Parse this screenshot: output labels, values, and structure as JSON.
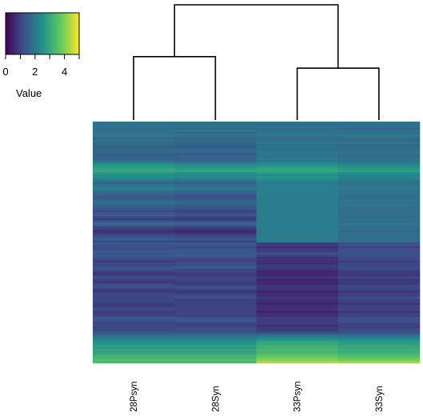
{
  "chart_data": {
    "type": "heatmap",
    "title": "",
    "columns": [
      "28Psyn",
      "28Syn",
      "33Psyn",
      "33Syn"
    ],
    "dendrogram": {
      "merges": [
        {
          "left": "28Psyn",
          "right": "28Syn",
          "height": 0.55
        },
        {
          "left": "33Psyn",
          "right": "33Syn",
          "height": 0.45
        },
        {
          "left": "28Psyn|28Syn",
          "right": "33Psyn|33Syn",
          "height": 1.0
        }
      ]
    },
    "row_count": 120,
    "value_range": [
      0,
      5
    ],
    "colorbar": {
      "title": "Value",
      "ticks": [
        0,
        2,
        4
      ],
      "minor_ticks": [
        0,
        1,
        2,
        3,
        4,
        5
      ],
      "colormap": "viridis",
      "colors": [
        "#440154",
        "#3b528b",
        "#21918c",
        "#5ec962",
        "#fde725"
      ]
    },
    "row_profile_means": [
      1.9,
      1.85,
      1.9,
      1.7,
      1.8,
      1.75,
      1.9,
      1.8,
      1.6,
      1.7,
      1.75,
      1.65,
      1.55,
      1.6,
      1.7,
      1.6,
      1.5,
      1.55,
      1.6,
      1.65,
      2.0,
      2.3,
      2.4,
      2.5,
      2.6,
      2.4,
      2.2,
      2.3,
      2.1,
      1.9,
      1.6,
      1.7,
      1.8,
      1.9,
      1.7,
      1.6,
      1.5,
      1.4,
      1.5,
      1.6,
      1.7,
      1.6,
      1.5,
      1.4,
      1.3,
      1.4,
      1.5,
      1.3,
      1.2,
      1.4,
      1.6,
      1.5,
      1.3,
      1.2,
      1.1,
      1.2,
      1.3,
      1.4,
      1.5,
      1.3,
      1.2,
      1.1,
      1.0,
      1.1,
      1.2,
      1.3,
      1.2,
      1.1,
      1.0,
      0.9,
      1.0,
      1.1,
      1.2,
      1.0,
      0.9,
      0.8,
      0.9,
      1.0,
      0.9,
      0.8,
      0.9,
      1.0,
      1.1,
      0.9,
      0.8,
      0.9,
      1.0,
      1.1,
      1.0,
      0.9,
      0.8,
      0.9,
      1.0,
      0.9,
      0.8,
      0.9,
      1.0,
      1.1,
      1.2,
      1.1,
      1.0,
      0.9,
      1.0,
      1.1,
      1.2,
      1.5,
      1.8,
      2.0,
      2.3,
      2.5,
      2.6,
      2.8,
      2.7,
      2.9,
      2.8,
      3.0,
      3.2,
      3.3,
      3.5,
      4.0
    ],
    "column_offsets": [
      [
        0.0,
        0.0,
        0.05,
        0.0
      ],
      [
        0.1,
        0.05,
        -0.1,
        0.0
      ],
      [
        0.0,
        0.05,
        0.1,
        0.0
      ],
      [
        0.1,
        0.0,
        0.1,
        -0.1
      ],
      [
        0.0,
        0.1,
        0.0,
        0.05
      ],
      [
        0.1,
        -0.1,
        0.2,
        0.0
      ],
      [
        0.0,
        0.0,
        0.1,
        0.1
      ],
      [
        0.1,
        0.0,
        0.0,
        0.1
      ],
      [
        0.0,
        0.0,
        0.2,
        0.1
      ],
      [
        0.1,
        0.0,
        0.1,
        0.0
      ],
      [
        0.0,
        -0.1,
        0.3,
        0.2
      ],
      [
        0.1,
        0.0,
        0.2,
        0.1
      ],
      [
        0.0,
        -0.1,
        0.4,
        0.2
      ],
      [
        0.1,
        0.0,
        0.3,
        0.2
      ],
      [
        0.0,
        0.1,
        0.2,
        0.1
      ],
      [
        0.1,
        0.0,
        0.4,
        0.3
      ],
      [
        0.0,
        -0.1,
        0.5,
        0.3
      ],
      [
        0.1,
        0.0,
        0.4,
        0.2
      ],
      [
        0.0,
        -0.1,
        0.5,
        0.3
      ],
      [
        0.1,
        0.0,
        0.3,
        0.2
      ],
      [
        0.2,
        0.0,
        0.3,
        0.1
      ],
      [
        0.3,
        0.1,
        0.2,
        0.0
      ],
      [
        0.3,
        0.2,
        0.3,
        0.1
      ],
      [
        0.4,
        0.2,
        0.4,
        0.2
      ],
      [
        0.4,
        0.3,
        0.3,
        0.2
      ],
      [
        0.3,
        0.2,
        0.3,
        0.1
      ],
      [
        0.2,
        0.1,
        0.2,
        0.1
      ],
      [
        0.2,
        0.1,
        0.3,
        0.0
      ],
      [
        0.1,
        0.0,
        0.4,
        0.1
      ],
      [
        0.1,
        0.0,
        0.3,
        0.0
      ],
      [
        0.0,
        -0.1,
        0.5,
        0.3
      ],
      [
        0.1,
        0.0,
        0.4,
        0.2
      ],
      [
        0.2,
        0.1,
        0.3,
        0.2
      ],
      [
        0.3,
        0.1,
        0.2,
        0.1
      ],
      [
        0.1,
        0.0,
        0.4,
        0.2
      ],
      [
        0.0,
        -0.1,
        0.5,
        0.3
      ],
      [
        0.0,
        -0.2,
        0.6,
        0.4
      ],
      [
        -0.1,
        -0.2,
        0.7,
        0.4
      ],
      [
        0.0,
        -0.1,
        0.6,
        0.3
      ],
      [
        0.1,
        0.0,
        0.5,
        0.3
      ],
      [
        0.1,
        0.0,
        0.4,
        0.2
      ],
      [
        0.0,
        -0.1,
        0.5,
        0.3
      ],
      [
        0.0,
        -0.2,
        0.6,
        0.3
      ],
      [
        -0.1,
        -0.2,
        0.7,
        0.4
      ],
      [
        -0.2,
        -0.3,
        0.8,
        0.5
      ],
      [
        -0.1,
        -0.2,
        0.7,
        0.4
      ],
      [
        0.0,
        -0.1,
        0.6,
        0.3
      ],
      [
        -0.2,
        -0.3,
        0.8,
        0.5
      ],
      [
        -0.3,
        -0.4,
        0.9,
        0.6
      ],
      [
        -0.1,
        -0.2,
        0.7,
        0.4
      ],
      [
        0.1,
        0.0,
        0.5,
        0.3
      ],
      [
        0.0,
        -0.1,
        0.6,
        0.4
      ],
      [
        -0.2,
        -0.3,
        0.8,
        0.5
      ],
      [
        -0.3,
        -0.4,
        0.9,
        0.6
      ],
      [
        -0.4,
        -0.5,
        1.0,
        0.6
      ],
      [
        -0.3,
        -0.4,
        0.9,
        0.6
      ],
      [
        -0.2,
        -0.3,
        0.8,
        0.5
      ],
      [
        -0.1,
        -0.2,
        0.7,
        0.4
      ],
      [
        0.0,
        -0.1,
        0.6,
        0.3
      ],
      [
        -0.2,
        -0.3,
        0.8,
        0.5
      ],
      [
        0.2,
        0.1,
        -0.3,
        0.0
      ],
      [
        0.1,
        0.2,
        -0.2,
        0.1
      ],
      [
        0.2,
        0.1,
        -0.3,
        0.0
      ],
      [
        0.1,
        0.2,
        -0.2,
        0.1
      ],
      [
        0.2,
        0.1,
        -0.3,
        0.0
      ],
      [
        0.0,
        0.1,
        0.0,
        -0.1
      ],
      [
        0.1,
        0.2,
        -0.2,
        0.0
      ],
      [
        0.2,
        0.1,
        -0.3,
        0.1
      ],
      [
        0.1,
        0.0,
        -0.2,
        0.1
      ],
      [
        0.0,
        0.1,
        -0.2,
        0.0
      ],
      [
        0.1,
        0.2,
        -0.3,
        0.1
      ],
      [
        0.0,
        0.1,
        -0.2,
        0.0
      ],
      [
        0.1,
        0.2,
        -0.3,
        0.0
      ],
      [
        0.2,
        0.1,
        -0.2,
        0.1
      ],
      [
        0.1,
        0.2,
        -0.3,
        0.0
      ],
      [
        0.0,
        0.1,
        -0.2,
        0.1
      ],
      [
        0.1,
        0.0,
        -0.3,
        0.0
      ],
      [
        0.2,
        0.1,
        -0.2,
        0.1
      ],
      [
        0.1,
        0.2,
        -0.3,
        0.0
      ],
      [
        0.0,
        0.1,
        -0.2,
        0.1
      ],
      [
        0.1,
        0.0,
        -0.3,
        0.0
      ],
      [
        0.2,
        0.1,
        -0.2,
        0.1
      ],
      [
        0.1,
        0.2,
        -0.3,
        0.0
      ],
      [
        0.0,
        0.1,
        -0.2,
        0.1
      ],
      [
        0.1,
        0.0,
        -0.3,
        0.0
      ],
      [
        0.2,
        0.1,
        -0.2,
        0.1
      ],
      [
        0.1,
        0.2,
        -0.3,
        0.0
      ],
      [
        0.0,
        0.1,
        -0.2,
        0.1
      ],
      [
        0.1,
        0.0,
        -0.3,
        0.0
      ],
      [
        0.2,
        0.1,
        -0.2,
        0.1
      ],
      [
        0.1,
        0.2,
        -0.3,
        0.0
      ],
      [
        0.0,
        0.1,
        -0.2,
        0.1
      ],
      [
        0.1,
        0.0,
        -0.3,
        0.0
      ],
      [
        0.2,
        0.1,
        -0.2,
        0.1
      ],
      [
        0.1,
        0.2,
        -0.3,
        0.0
      ],
      [
        0.0,
        0.1,
        -0.2,
        0.1
      ],
      [
        0.1,
        0.0,
        -0.3,
        0.0
      ],
      [
        0.2,
        0.1,
        -0.2,
        0.1
      ],
      [
        0.1,
        0.2,
        -0.3,
        0.0
      ],
      [
        0.0,
        0.1,
        -0.2,
        0.1
      ],
      [
        0.1,
        0.0,
        -0.1,
        0.0
      ],
      [
        0.2,
        0.1,
        -0.2,
        0.1
      ],
      [
        0.1,
        0.2,
        -0.1,
        0.0
      ],
      [
        0.0,
        0.1,
        -0.2,
        0.1
      ],
      [
        0.1,
        0.0,
        -0.1,
        0.0
      ],
      [
        0.0,
        0.0,
        0.1,
        0.0
      ],
      [
        0.0,
        0.0,
        0.2,
        0.1
      ],
      [
        0.0,
        0.0,
        0.3,
        0.1
      ],
      [
        0.0,
        0.0,
        0.3,
        0.2
      ],
      [
        0.0,
        0.0,
        0.4,
        0.2
      ],
      [
        0.0,
        0.0,
        0.4,
        0.2
      ],
      [
        0.0,
        0.0,
        0.4,
        0.2
      ],
      [
        0.0,
        0.0,
        0.5,
        0.3
      ],
      [
        0.0,
        0.0,
        0.4,
        0.2
      ],
      [
        0.0,
        0.0,
        0.5,
        0.3
      ],
      [
        0.0,
        0.0,
        0.5,
        0.3
      ],
      [
        0.0,
        0.0,
        0.5,
        0.3
      ],
      [
        0.0,
        0.0,
        0.6,
        0.4
      ],
      [
        0.0,
        0.0,
        0.6,
        0.4
      ],
      [
        -0.6,
        -0.6,
        0.4,
        0.3
      ]
    ]
  }
}
